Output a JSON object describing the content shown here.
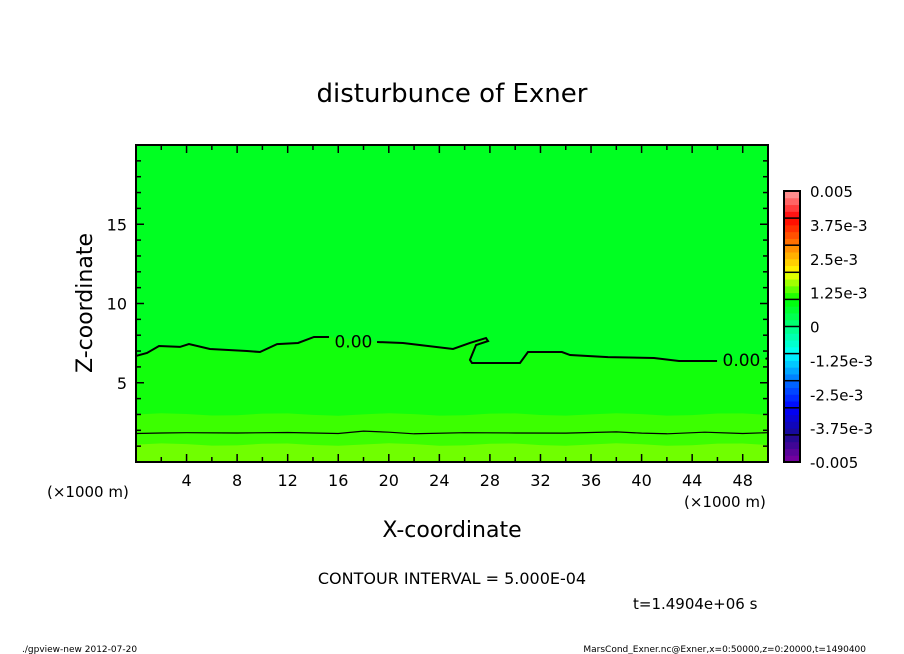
{
  "chart_data": {
    "type": "contour",
    "title": "disturbunce of Exner",
    "xlabel": "X-coordinate",
    "ylabel": "Z-coordinate",
    "x_unit_label": "(×1000 m)",
    "xlim": [
      0,
      50
    ],
    "ylim": [
      0,
      20
    ],
    "x_ticks": [
      4,
      8,
      12,
      16,
      20,
      24,
      28,
      32,
      36,
      40,
      44,
      48
    ],
    "y_ticks": [
      5,
      10,
      15
    ],
    "contour_interval_text": "CONTOUR INTERVAL = 5.000E-04",
    "time_text": "t=1.4904e+06 s",
    "fill_bands": [
      {
        "z_from": 0,
        "z_to": 1.1,
        "color": "#70ff00"
      },
      {
        "z_from": 1.1,
        "z_to": 3.0,
        "color": "#3cff00"
      },
      {
        "z_from": 3.0,
        "z_to": "zero-contour",
        "color": "#12ff0c"
      },
      {
        "z_from": "zero-contour",
        "z_to": 20,
        "color": "#00ff22"
      }
    ],
    "contours": [
      {
        "label": "0.00",
        "segments": [
          [
            [
              0,
              6.69
            ],
            [
              0.87,
              6.88
            ],
            [
              1.82,
              7.32
            ],
            [
              3.48,
              7.26
            ],
            [
              4.19,
              7.44
            ],
            [
              5.85,
              7.13
            ],
            [
              8.78,
              7.0
            ],
            [
              9.81,
              6.94
            ],
            [
              11.16,
              7.44
            ],
            [
              12.82,
              7.51
            ],
            [
              14.08,
              7.89
            ],
            [
              15.27,
              7.89
            ]
          ],
          [
            [
              19.07,
              7.57
            ],
            [
              21.12,
              7.51
            ],
            [
              25.08,
              7.13
            ],
            [
              26.42,
              7.51
            ],
            [
              27.69,
              7.82
            ],
            [
              27.85,
              7.63
            ],
            [
              26.9,
              7.38
            ],
            [
              26.42,
              6.44
            ],
            [
              26.58,
              6.25
            ],
            [
              30.38,
              6.25
            ],
            [
              31.01,
              6.94
            ],
            [
              33.7,
              6.94
            ],
            [
              34.34,
              6.75
            ],
            [
              37.34,
              6.62
            ],
            [
              40.98,
              6.56
            ],
            [
              42.96,
              6.37
            ],
            [
              45.97,
              6.37
            ]
          ],
          [
            [
              49.8,
              6.5
            ],
            [
              50,
              6.56
            ]
          ]
        ],
        "label_positions": [
          [
            17.2,
            7.6
          ],
          [
            47.9,
            6.45
          ]
        ]
      },
      {
        "label": "",
        "segments": [
          [
            [
              0,
              1.8
            ],
            [
              2,
              1.83
            ],
            [
              4,
              1.85
            ],
            [
              8,
              1.83
            ],
            [
              12,
              1.86
            ],
            [
              16,
              1.8
            ],
            [
              18,
              1.95
            ],
            [
              20,
              1.88
            ],
            [
              22,
              1.78
            ],
            [
              26,
              1.85
            ],
            [
              30,
              1.83
            ],
            [
              34,
              1.82
            ],
            [
              38,
              1.9
            ],
            [
              40,
              1.82
            ],
            [
              42,
              1.78
            ],
            [
              45,
              1.88
            ],
            [
              48,
              1.8
            ],
            [
              50,
              1.85
            ]
          ]
        ],
        "label_positions": []
      }
    ],
    "colorbar": {
      "range": [
        -0.005,
        0.005
      ],
      "tick_labels": [
        "0.005",
        "3.75e-3",
        "2.5e-3",
        "1.25e-3",
        "0",
        "-1.25e-3",
        "-2.5e-3",
        "-3.75e-3",
        "-0.005"
      ],
      "color_stops": [
        "#7f00a0",
        "#1a0a90",
        "#0000ff",
        "#0070ff",
        "#00ffff",
        "#00ff80",
        "#00ff00",
        "#ffff00",
        "#ff8000",
        "#ff0000",
        "#ffa0a0"
      ]
    }
  },
  "footer": {
    "left": "./gpview-new  2012-07-20",
    "right": "MarsCond_Exner.nc@Exner,x=0:50000,z=0:20000,t=1490400"
  }
}
